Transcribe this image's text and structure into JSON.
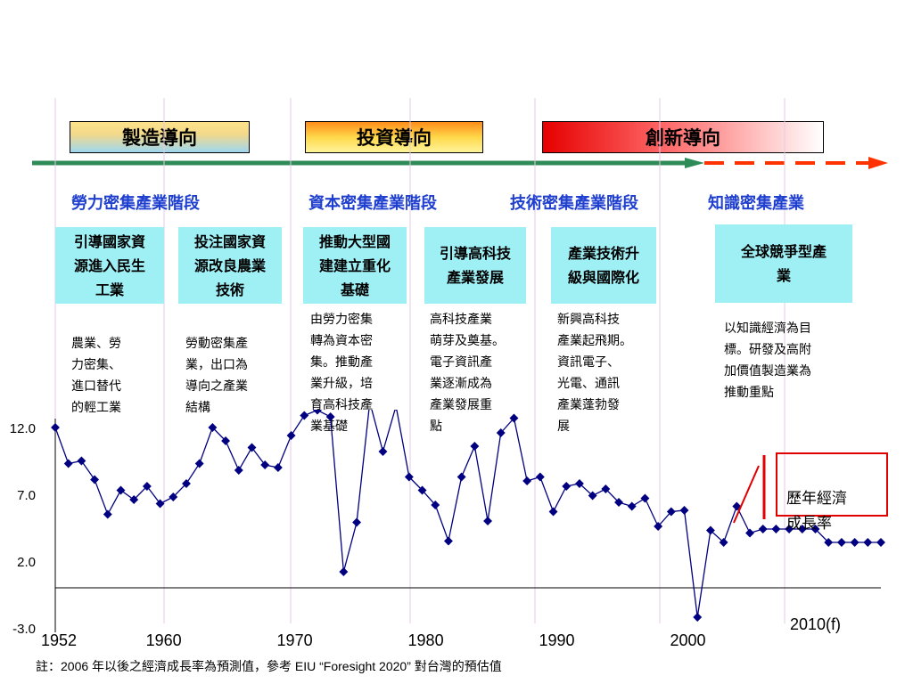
{
  "phases": [
    {
      "label": "製造導向"
    },
    {
      "label": "投資導向"
    },
    {
      "label": "創新導向"
    }
  ],
  "stages": [
    {
      "label": "勞力密集產業階段"
    },
    {
      "label": "資本密集產業階段"
    },
    {
      "label": "技術密集產業階段"
    },
    {
      "label": "知識密集產業"
    }
  ],
  "policies": [
    {
      "text": "引導國家資源進入民生工業"
    },
    {
      "text": "投注國家資源改良農業技術"
    },
    {
      "text": "推動大型國建建立重化基礎"
    },
    {
      "text": "引導高科技產業發展"
    },
    {
      "text": "產業技術升級與國際化"
    },
    {
      "text": "全球競爭型產業"
    }
  ],
  "descriptions": [
    {
      "text": "農業、勞\n力密集、\n進口替代\n的輕工業"
    },
    {
      "text": "勞動密集產\n業，出口為\n導向之產業\n結構"
    },
    {
      "text": "由勞力密集\n轉為資本密\n集。推動產\n業升級，培\n育高科技產\n業基礎"
    },
    {
      "text": "高科技產業\n萌芽及奠基。\n電子資訊產\n業逐漸成為\n產業發展重\n點"
    },
    {
      "text": "新興高科技\n產業起飛期。\n資訊電子、\n光電、通訊\n產業蓬勃發\n展"
    },
    {
      "text": "以知識經濟為目\n標。研發及高附\n加價值製造業為\n推動重點"
    }
  ],
  "legend": {
    "label": "歷年經濟\n成長率"
  },
  "footnote": "註：2006 年以後之經濟成長率為預測值，參考 EIU “Foresight 2020” 對台灣的預估值",
  "colors": {
    "line": "#000080",
    "arrow": "#2e8b57",
    "dash": "#ff3300",
    "stage": "#1f3fcf",
    "cyan": "#9ff0f5",
    "grid": "#e6c8e6"
  },
  "chart_data": {
    "type": "line",
    "x_tick_labels": [
      "1952",
      "1960",
      "1970",
      "1980",
      "1990",
      "2000",
      "2010(f)"
    ],
    "y_tick_labels": [
      "12.0",
      "7.0",
      "2.0",
      "-3.0"
    ],
    "ylim": [
      -3,
      12
    ],
    "xlim": [
      1952,
      2015
    ],
    "series": [
      {
        "x": [
          1952,
          1953,
          1954,
          1955,
          1956,
          1957,
          1958,
          1959,
          1960,
          1961,
          1962,
          1963,
          1964,
          1965,
          1966,
          1967,
          1968,
          1969,
          1970,
          1971,
          1972,
          1973,
          1974,
          1975,
          1976,
          1977,
          1978,
          1979,
          1980,
          1981,
          1982,
          1983,
          1984,
          1985,
          1986,
          1987,
          1988,
          1989,
          1990,
          1991,
          1992,
          1993,
          1994,
          1995,
          1996,
          1997,
          1998,
          1999,
          2000,
          2001,
          2002,
          2003,
          2004,
          2005,
          2006,
          2007,
          2008,
          2009,
          2010,
          2011,
          2012,
          2013,
          2014,
          2015
        ],
        "values": [
          12.0,
          9.3,
          9.5,
          8.1,
          5.5,
          7.3,
          6.6,
          7.6,
          6.3,
          6.8,
          7.8,
          9.3,
          12.0,
          11.0,
          8.8,
          10.5,
          9.2,
          9.0,
          11.4,
          12.9,
          13.3,
          12.8,
          1.2,
          4.9,
          13.9,
          10.2,
          13.6,
          8.3,
          7.3,
          6.2,
          3.5,
          8.3,
          10.6,
          5.0,
          11.6,
          12.7,
          8.0,
          8.3,
          5.7,
          7.6,
          7.8,
          6.9,
          7.4,
          6.4,
          6.1,
          6.7,
          4.6,
          5.7,
          5.8,
          -2.2,
          4.3,
          3.4,
          6.1,
          4.1,
          4.4,
          4.4,
          4.4,
          4.4,
          4.4,
          3.4,
          3.4,
          3.4,
          3.4,
          3.4
        ]
      }
    ]
  }
}
